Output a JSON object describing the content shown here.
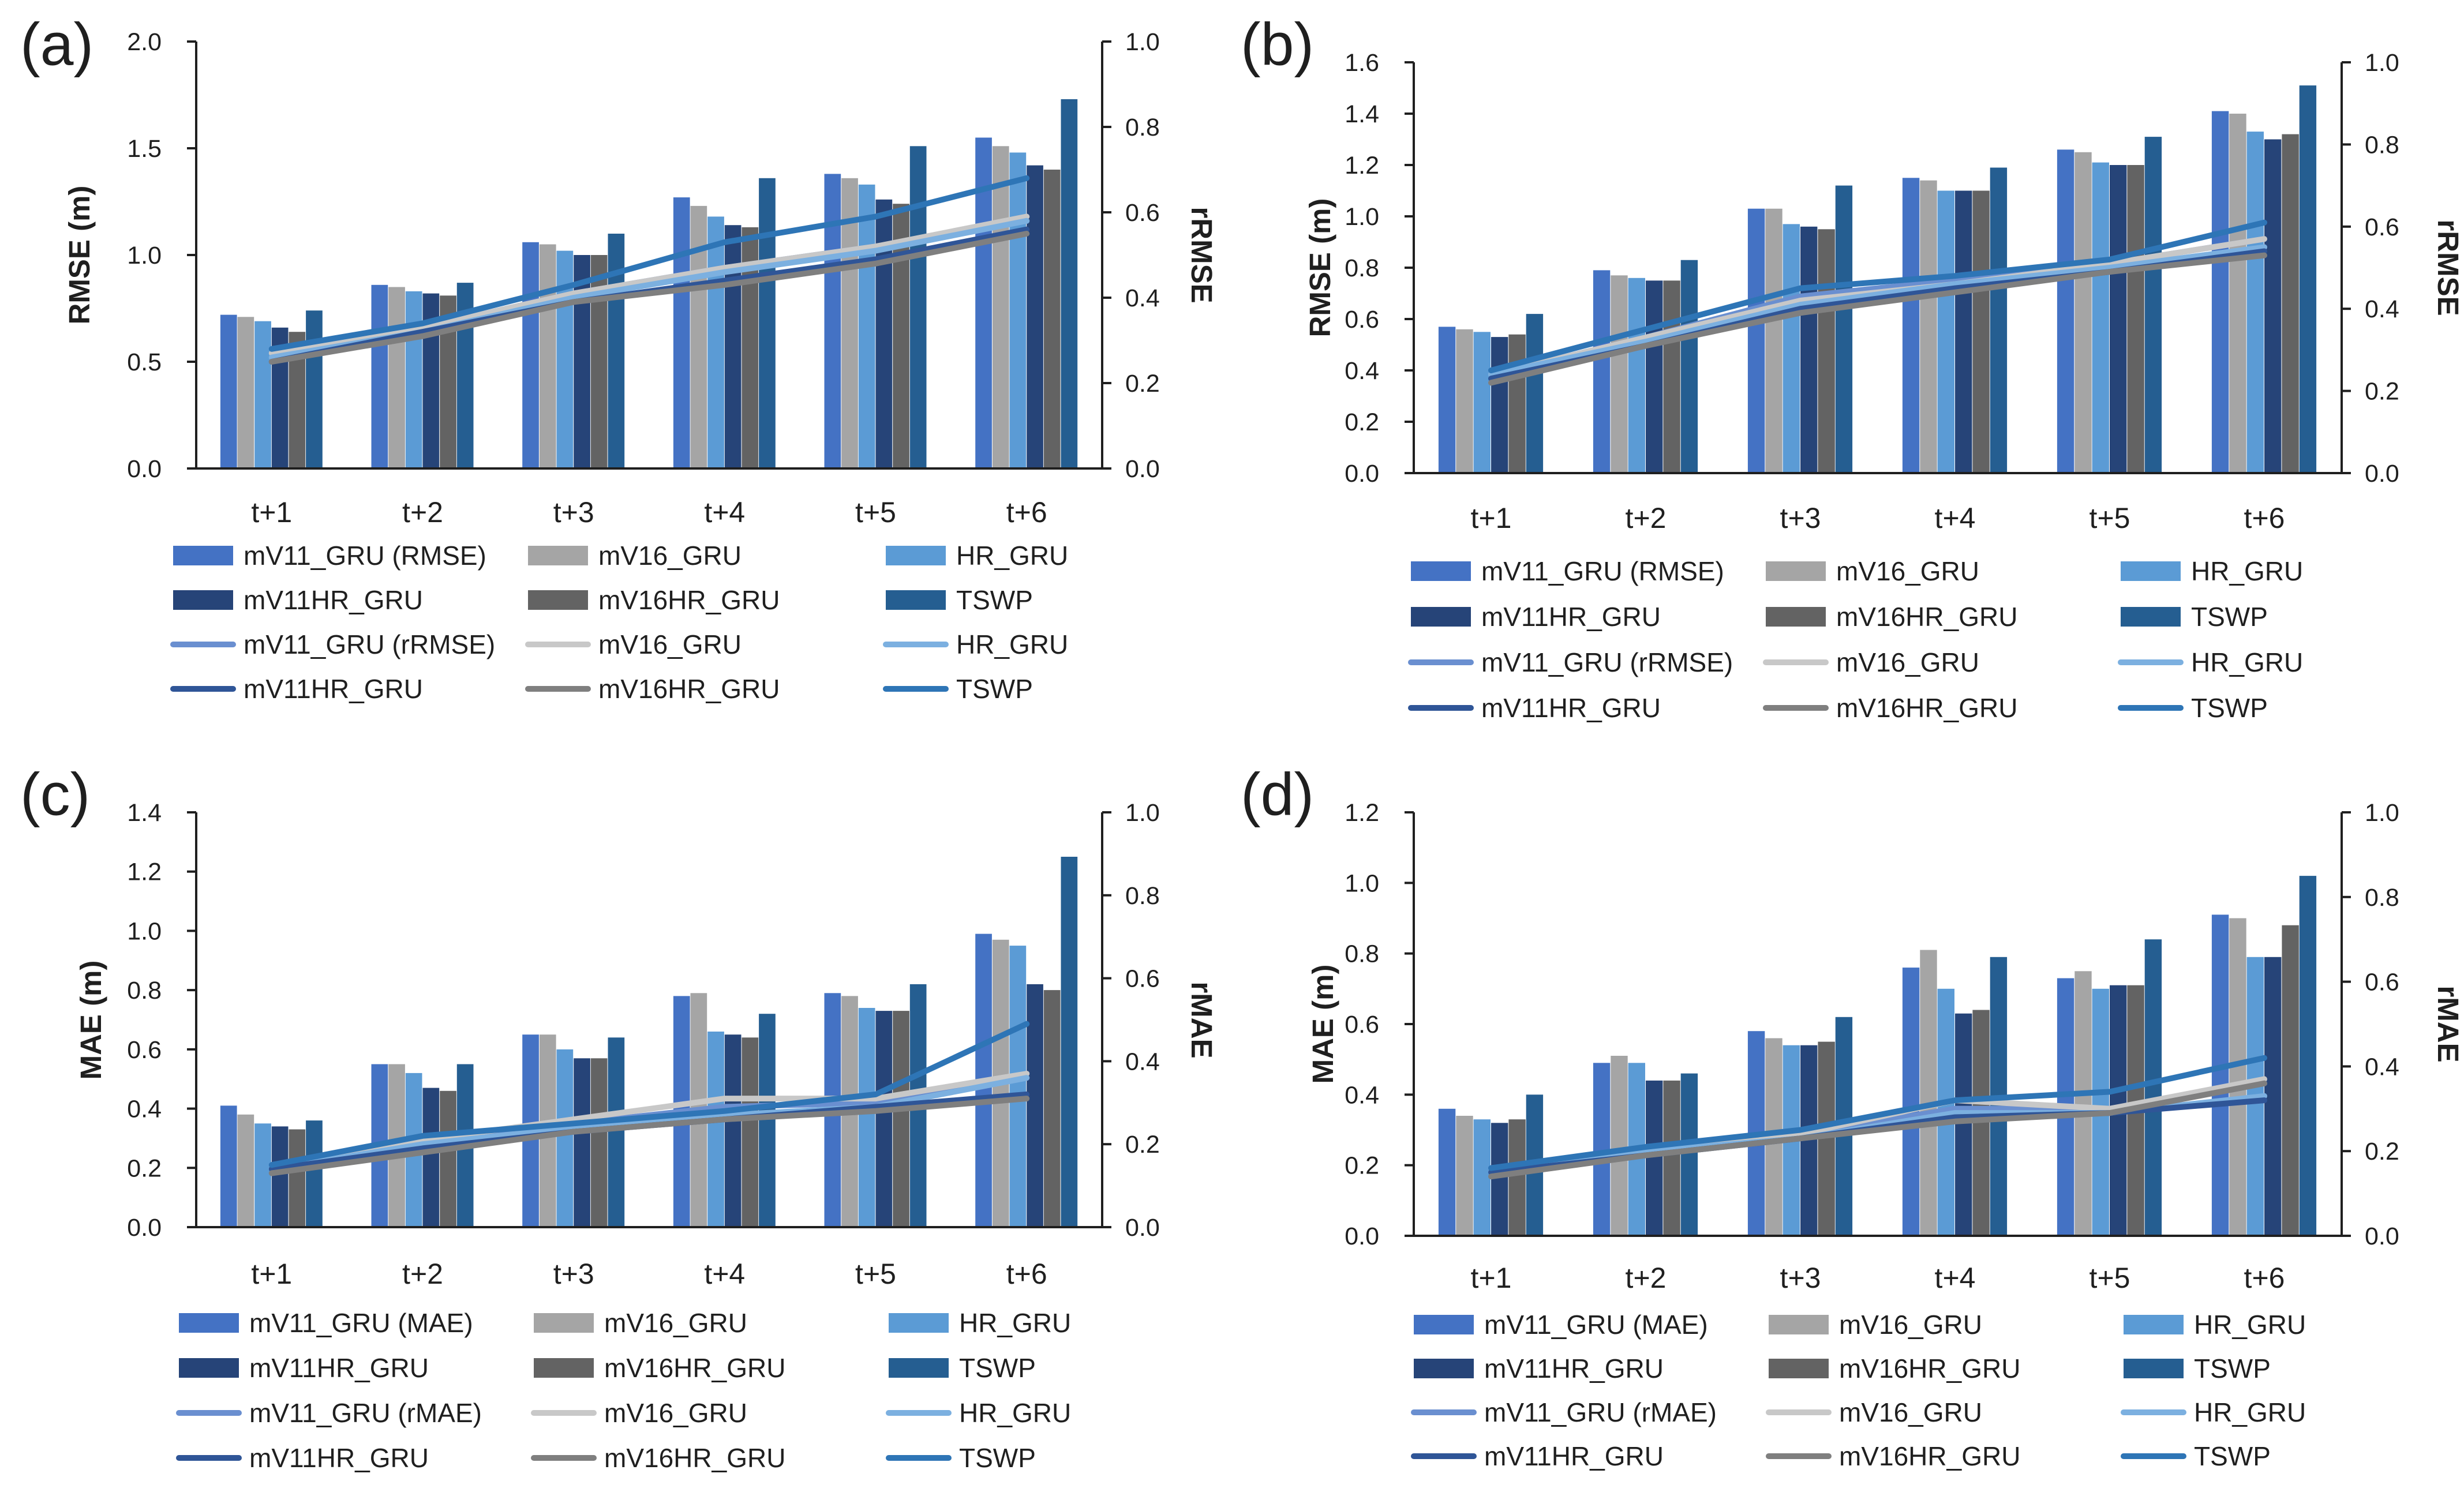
{
  "colors": {
    "mV11_GRU": "#4472C4",
    "mV16_GRU": "#A5A5A5",
    "HR_GRU": "#5B9BD5",
    "mV11HR_GRU": "#264478",
    "mV16HR_GRU": "#636363",
    "TSWP": "#255E91",
    "line_mV11_GRU": "#6A8FD0",
    "line_mV16_GRU": "#C8C8C8",
    "line_HR_GRU": "#7CB0E0",
    "line_mV11HR_GRU": "#2F5597",
    "line_mV16HR_GRU": "#7F7F7F",
    "line_TSWP": "#2E75B6"
  },
  "chart_data": [
    {
      "panel": "(a)",
      "type": "bar+line",
      "categories": [
        "t+1",
        "t+2",
        "t+3",
        "t+4",
        "t+5",
        "t+6"
      ],
      "ylabel": "RMSE (m)",
      "y2label": "rRMSE",
      "ylim": [
        0,
        2.0
      ],
      "yticks": [
        "0.0",
        "0.5",
        "1.0",
        "1.5",
        "2.0"
      ],
      "y2lim": [
        0,
        1.0
      ],
      "y2ticks": [
        "0.0",
        "0.2",
        "0.4",
        "0.6",
        "0.8",
        "1.0"
      ],
      "bar_series": [
        {
          "name": "mV11_GRU (RMSE)",
          "key": "mV11_GRU",
          "values": [
            0.72,
            0.86,
            1.06,
            1.27,
            1.38,
            1.55
          ]
        },
        {
          "name": "mV16_GRU",
          "key": "mV16_GRU",
          "values": [
            0.71,
            0.85,
            1.05,
            1.23,
            1.36,
            1.51
          ]
        },
        {
          "name": "HR_GRU",
          "key": "HR_GRU",
          "values": [
            0.69,
            0.83,
            1.02,
            1.18,
            1.33,
            1.48
          ]
        },
        {
          "name": "mV11HR_GRU",
          "key": "mV11HR_GRU",
          "values": [
            0.66,
            0.82,
            1.0,
            1.14,
            1.26,
            1.42
          ]
        },
        {
          "name": "mV16HR_GRU",
          "key": "mV16HR_GRU",
          "values": [
            0.64,
            0.81,
            1.0,
            1.13,
            1.24,
            1.4
          ]
        },
        {
          "name": "TSWP",
          "key": "TSWP",
          "values": [
            0.74,
            0.87,
            1.1,
            1.36,
            1.51,
            1.73
          ]
        }
      ],
      "line_series": [
        {
          "name": "mV11_GRU (rRMSE)",
          "key": "line_mV11_GRU",
          "values": [
            0.27,
            0.33,
            0.41,
            0.47,
            0.52,
            0.58
          ]
        },
        {
          "name": "mV16_GRU",
          "key": "line_mV16_GRU",
          "values": [
            0.27,
            0.33,
            0.41,
            0.47,
            0.52,
            0.59
          ]
        },
        {
          "name": "HR_GRU",
          "key": "line_HR_GRU",
          "values": [
            0.26,
            0.32,
            0.4,
            0.46,
            0.51,
            0.58
          ]
        },
        {
          "name": "mV11HR_GRU",
          "key": "line_mV11HR_GRU",
          "values": [
            0.25,
            0.32,
            0.39,
            0.44,
            0.49,
            0.56
          ]
        },
        {
          "name": "mV16HR_GRU",
          "key": "line_mV16HR_GRU",
          "values": [
            0.25,
            0.31,
            0.39,
            0.43,
            0.48,
            0.55
          ]
        },
        {
          "name": "TSWP",
          "key": "line_TSWP",
          "values": [
            0.28,
            0.34,
            0.43,
            0.53,
            0.59,
            0.68
          ]
        }
      ]
    },
    {
      "panel": "(b)",
      "type": "bar+line",
      "categories": [
        "t+1",
        "t+2",
        "t+3",
        "t+4",
        "t+5",
        "t+6"
      ],
      "ylabel": "RMSE (m)",
      "y2label": "rRMSE",
      "ylim": [
        0,
        1.6
      ],
      "yticks": [
        "0.0",
        "0.2",
        "0.4",
        "0.6",
        "0.8",
        "1.0",
        "1.2",
        "1.4",
        "1.6"
      ],
      "y2lim": [
        0,
        1.0
      ],
      "y2ticks": [
        "0.0",
        "0.2",
        "0.4",
        "0.6",
        "0.8",
        "1.0"
      ],
      "bar_series": [
        {
          "name": "mV11_GRU (RMSE)",
          "key": "mV11_GRU",
          "values": [
            0.57,
            0.79,
            1.03,
            1.15,
            1.26,
            1.41
          ]
        },
        {
          "name": "mV16_GRU",
          "key": "mV16_GRU",
          "values": [
            0.56,
            0.77,
            1.03,
            1.14,
            1.25,
            1.4
          ]
        },
        {
          "name": "HR_GRU",
          "key": "HR_GRU",
          "values": [
            0.55,
            0.76,
            0.97,
            1.1,
            1.21,
            1.33
          ]
        },
        {
          "name": "mV11HR_GRU",
          "key": "mV11HR_GRU",
          "values": [
            0.53,
            0.75,
            0.96,
            1.1,
            1.2,
            1.3
          ]
        },
        {
          "name": "mV16HR_GRU",
          "key": "mV16HR_GRU",
          "values": [
            0.54,
            0.75,
            0.95,
            1.1,
            1.2,
            1.32
          ]
        },
        {
          "name": "TSWP",
          "key": "TSWP",
          "values": [
            0.62,
            0.83,
            1.12,
            1.19,
            1.31,
            1.51
          ]
        }
      ],
      "line_series": [
        {
          "name": "mV11_GRU (rRMSE)",
          "key": "line_mV11_GRU",
          "values": [
            0.24,
            0.33,
            0.43,
            0.47,
            0.51,
            0.57
          ]
        },
        {
          "name": "mV16_GRU",
          "key": "line_mV16_GRU",
          "values": [
            0.24,
            0.33,
            0.42,
            0.46,
            0.51,
            0.57
          ]
        },
        {
          "name": "HR_GRU",
          "key": "line_HR_GRU",
          "values": [
            0.24,
            0.32,
            0.41,
            0.46,
            0.5,
            0.55
          ]
        },
        {
          "name": "mV11HR_GRU",
          "key": "line_mV11HR_GRU",
          "values": [
            0.23,
            0.31,
            0.4,
            0.45,
            0.49,
            0.54
          ]
        },
        {
          "name": "mV16HR_GRU",
          "key": "line_mV16HR_GRU",
          "values": [
            0.22,
            0.31,
            0.39,
            0.44,
            0.49,
            0.53
          ]
        },
        {
          "name": "TSWP",
          "key": "line_TSWP",
          "values": [
            0.25,
            0.35,
            0.45,
            0.48,
            0.52,
            0.61
          ]
        }
      ]
    },
    {
      "panel": "(c)",
      "type": "bar+line",
      "categories": [
        "t+1",
        "t+2",
        "t+3",
        "t+4",
        "t+5",
        "t+6"
      ],
      "ylabel": "MAE (m)",
      "y2label": "rMAE",
      "ylim": [
        0,
        1.4
      ],
      "yticks": [
        "0.0",
        "0.2",
        "0.4",
        "0.6",
        "0.8",
        "1.0",
        "1.2",
        "1.4"
      ],
      "y2lim": [
        0,
        1.0
      ],
      "y2ticks": [
        "0.0",
        "0.2",
        "0.4",
        "0.6",
        "0.8",
        "1.0"
      ],
      "bar_series": [
        {
          "name": "mV11_GRU (MAE)",
          "key": "mV11_GRU",
          "values": [
            0.41,
            0.55,
            0.65,
            0.78,
            0.79,
            0.99
          ]
        },
        {
          "name": "mV16_GRU",
          "key": "mV16_GRU",
          "values": [
            0.38,
            0.55,
            0.65,
            0.79,
            0.78,
            0.97
          ]
        },
        {
          "name": "HR_GRU",
          "key": "HR_GRU",
          "values": [
            0.35,
            0.52,
            0.6,
            0.66,
            0.74,
            0.95
          ]
        },
        {
          "name": "mV11HR_GRU",
          "key": "mV11HR_GRU",
          "values": [
            0.34,
            0.47,
            0.57,
            0.65,
            0.73,
            0.82
          ]
        },
        {
          "name": "mV16HR_GRU",
          "key": "mV16HR_GRU",
          "values": [
            0.33,
            0.46,
            0.57,
            0.64,
            0.73,
            0.8
          ]
        },
        {
          "name": "TSWP",
          "key": "TSWP",
          "values": [
            0.36,
            0.55,
            0.64,
            0.72,
            0.82,
            1.25
          ]
        }
      ],
      "line_series": [
        {
          "name": "mV11_GRU (rMAE)",
          "key": "line_mV11_GRU",
          "values": [
            0.15,
            0.21,
            0.25,
            0.29,
            0.3,
            0.36
          ]
        },
        {
          "name": "mV16_GRU",
          "key": "line_mV16_GRU",
          "values": [
            0.14,
            0.21,
            0.26,
            0.31,
            0.31,
            0.37
          ]
        },
        {
          "name": "HR_GRU",
          "key": "line_HR_GRU",
          "values": [
            0.14,
            0.2,
            0.24,
            0.27,
            0.29,
            0.36
          ]
        },
        {
          "name": "mV11HR_GRU",
          "key": "line_mV11HR_GRU",
          "values": [
            0.14,
            0.19,
            0.23,
            0.26,
            0.29,
            0.32
          ]
        },
        {
          "name": "mV16HR_GRU",
          "key": "line_mV16HR_GRU",
          "values": [
            0.13,
            0.18,
            0.23,
            0.26,
            0.28,
            0.31
          ]
        },
        {
          "name": "TSWP",
          "key": "line_TSWP",
          "values": [
            0.15,
            0.22,
            0.25,
            0.28,
            0.32,
            0.49
          ]
        }
      ]
    },
    {
      "panel": "(d)",
      "type": "bar+line",
      "categories": [
        "t+1",
        "t+2",
        "t+3",
        "t+4",
        "t+5",
        "t+6"
      ],
      "ylabel": "MAE (m)",
      "y2label": "rMAE",
      "ylim": [
        0,
        1.2
      ],
      "yticks": [
        "0.0",
        "0.2",
        "0.4",
        "0.6",
        "0.8",
        "1.0",
        "1.2"
      ],
      "y2lim": [
        0,
        1.0
      ],
      "y2ticks": [
        "0.0",
        "0.2",
        "0.4",
        "0.6",
        "0.8",
        "1.0"
      ],
      "bar_series": [
        {
          "name": "mV11_GRU (MAE)",
          "key": "mV11_GRU",
          "values": [
            0.36,
            0.49,
            0.58,
            0.76,
            0.73,
            0.91
          ]
        },
        {
          "name": "mV16_GRU",
          "key": "mV16_GRU",
          "values": [
            0.34,
            0.51,
            0.56,
            0.81,
            0.75,
            0.9
          ]
        },
        {
          "name": "HR_GRU",
          "key": "HR_GRU",
          "values": [
            0.33,
            0.49,
            0.54,
            0.7,
            0.7,
            0.79
          ]
        },
        {
          "name": "mV11HR_GRU",
          "key": "mV11HR_GRU",
          "values": [
            0.32,
            0.44,
            0.54,
            0.63,
            0.71,
            0.79
          ]
        },
        {
          "name": "mV16HR_GRU",
          "key": "mV16HR_GRU",
          "values": [
            0.33,
            0.44,
            0.55,
            0.64,
            0.71,
            0.88
          ]
        },
        {
          "name": "TSWP",
          "key": "TSWP",
          "values": [
            0.4,
            0.46,
            0.62,
            0.79,
            0.84,
            1.02
          ]
        }
      ],
      "line_series": [
        {
          "name": "mV11_GRU (rMAE)",
          "key": "line_mV11_GRU",
          "values": [
            0.16,
            0.2,
            0.24,
            0.3,
            0.3,
            0.36
          ]
        },
        {
          "name": "mV16_GRU",
          "key": "line_mV16_GRU",
          "values": [
            0.15,
            0.2,
            0.24,
            0.32,
            0.3,
            0.37
          ]
        },
        {
          "name": "HR_GRU",
          "key": "line_HR_GRU",
          "values": [
            0.15,
            0.2,
            0.23,
            0.29,
            0.29,
            0.33
          ]
        },
        {
          "name": "mV11HR_GRU",
          "key": "line_mV11HR_GRU",
          "values": [
            0.15,
            0.19,
            0.23,
            0.28,
            0.29,
            0.32
          ]
        },
        {
          "name": "mV16HR_GRU",
          "key": "line_mV16HR_GRU",
          "values": [
            0.14,
            0.19,
            0.23,
            0.27,
            0.29,
            0.36
          ]
        },
        {
          "name": "TSWP",
          "key": "line_TSWP",
          "values": [
            0.16,
            0.21,
            0.25,
            0.32,
            0.34,
            0.42
          ]
        }
      ]
    }
  ]
}
